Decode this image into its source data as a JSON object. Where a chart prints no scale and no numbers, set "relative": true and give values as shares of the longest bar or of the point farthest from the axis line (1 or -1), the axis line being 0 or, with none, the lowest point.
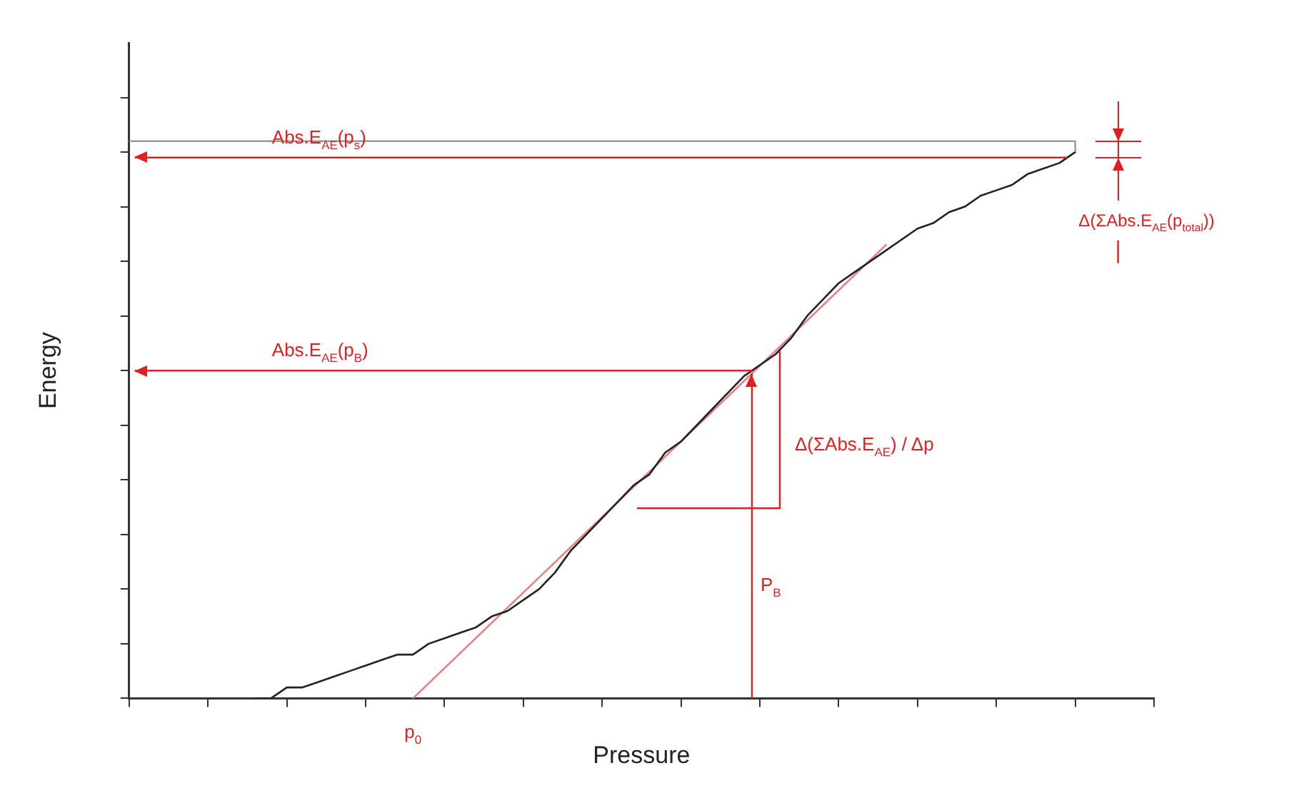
{
  "chart_data": {
    "type": "line",
    "relative": true,
    "xlabel": "Pressure",
    "ylabel": "Energy",
    "legend": false,
    "grid": false,
    "marker": "none",
    "categories": [
      null,
      null,
      null,
      null,
      null,
      null,
      null,
      null,
      null,
      null,
      null,
      null,
      null,
      null,
      null,
      null,
      null,
      null,
      null,
      null,
      null,
      null,
      null,
      null,
      null,
      null,
      null,
      null,
      null,
      null,
      null,
      null,
      null,
      null,
      null,
      null,
      null,
      null,
      null,
      null,
      null,
      null,
      null,
      null,
      null,
      null,
      null,
      null,
      null,
      null,
      null,
      null,
      null,
      null,
      null,
      null,
      null,
      null,
      null,
      null,
      null,
      null,
      null,
      null,
      null,
      null
    ],
    "series": [
      {
        "color": "#222222",
        "values": [
          null,
          null,
          null,
          null,
          null,
          null,
          null,
          null,
          0,
          0,
          0.02,
          0.02,
          0.03,
          0.04,
          0.05,
          0.06,
          0.07,
          0.08,
          0.08,
          0.1,
          0.11,
          0.12,
          0.13,
          0.15,
          0.16,
          0.18,
          0.2,
          0.23,
          0.27,
          0.3,
          0.33,
          0.36,
          0.39,
          0.41,
          0.45,
          0.47,
          0.5,
          0.53,
          0.56,
          0.59,
          0.61,
          0.63,
          0.66,
          0.7,
          0.73,
          0.76,
          0.78,
          0.8,
          0.82,
          0.84,
          0.86,
          0.87,
          0.89,
          0.9,
          0.92,
          0.93,
          0.94,
          0.96,
          0.97,
          0.98,
          1.0,
          null,
          null,
          null,
          null,
          null
        ]
      },
      {
        "color": "#e88080",
        "values": [
          null,
          null,
          null,
          null,
          null,
          null,
          null,
          null,
          null,
          null,
          null,
          null,
          null,
          null,
          null,
          null,
          null,
          null,
          0,
          null,
          null,
          null,
          null,
          null,
          null,
          null,
          null,
          null,
          null,
          null,
          null,
          null,
          null,
          null,
          null,
          null,
          null,
          null,
          null,
          null,
          null,
          null,
          null,
          null,
          null,
          null,
          null,
          null,
          0.83,
          null,
          null,
          null,
          null,
          null,
          null,
          null,
          null,
          null,
          null,
          null,
          null,
          null,
          null,
          null,
          null,
          null
        ]
      }
    ],
    "ref_lines": [
      {
        "axis": "y",
        "value": 1.02,
        "color": "#999999"
      },
      {
        "axis": "y",
        "value": 0.99,
        "label": "Abs.E$_{AE}$(p$_{s}$)",
        "color": "#e02020"
      },
      {
        "axis": "y",
        "value": 0.6,
        "label": "Abs.E$_{AE}$(p$_{B}$)",
        "color": "#e02020"
      }
    ],
    "annotations": [
      "Δ(ΣAbs.E$_{AE}$) / Δp",
      "p$_{0}$",
      "Δ(ΣAbs.E$_{AE}$(p$_{total}$))",
      "P$_{B}$"
    ]
  }
}
